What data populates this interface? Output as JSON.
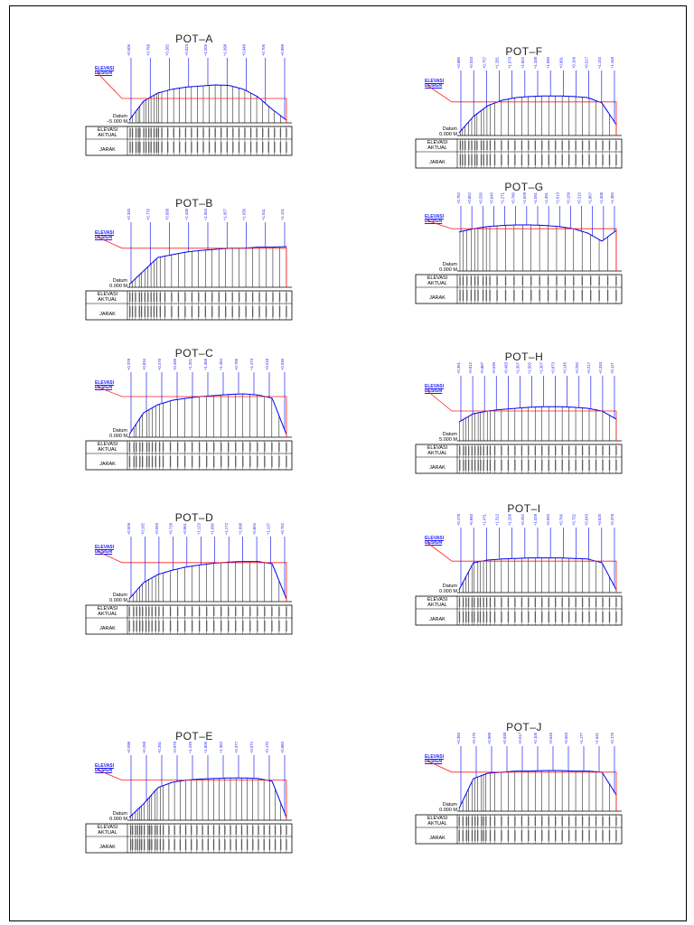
{
  "labels": {
    "elevasi_design": [
      "ELEVASI",
      "DESIGN"
    ],
    "datum_label": "Datum",
    "row_elevasi": [
      "ELEVASI",
      "AKTUAL"
    ],
    "row_jarak": "JARAK"
  },
  "colors": {
    "design_line": "#ff2020",
    "ground_line": "#0000ee",
    "label_blue": "#1a1aff",
    "ink": "#000000"
  },
  "sections": [
    {
      "title": "POT–A",
      "datum": "−5.000 M",
      "n": 34,
      "design": 0.45,
      "ground": [
        0.05,
        0.4,
        0.55,
        0.62,
        0.66,
        0.68,
        0.7,
        0.69,
        0.62,
        0.48,
        0.25,
        0.05
      ],
      "tops": [
        "+0.506",
        "+0.799",
        "+0.282",
        "+0.523",
        "+1.006",
        "+1.098",
        "+0.848",
        "+0.706",
        "+0.899"
      ]
    },
    {
      "title": "POT–B",
      "datum": "0.000 M",
      "n": 30,
      "design": 0.72,
      "ground": [
        0.05,
        0.3,
        0.55,
        0.6,
        0.65,
        0.68,
        0.7,
        0.72,
        0.72,
        0.74,
        0.74,
        0.75
      ],
      "tops": [
        "+0.333",
        "+0.775",
        "+0.838",
        "+1.438",
        "+1.653",
        "+1.657",
        "+1.636",
        "+1.611",
        "+1.121"
      ]
    },
    {
      "title": "POT–C",
      "datum": "0.000 M",
      "n": 28,
      "design": 0.75,
      "ground": [
        0.05,
        0.45,
        0.6,
        0.68,
        0.72,
        0.75,
        0.77,
        0.79,
        0.8,
        0.78,
        0.72,
        0.05
      ],
      "tops": [
        "+0.378",
        "+0.834",
        "+0.475",
        "+0.499",
        "+1.321",
        "+1.369",
        "+1.484",
        "+0.796",
        "+1.473",
        "+0.018",
        "+0.536"
      ]
    },
    {
      "title": "POT–D",
      "datum": "0.000 M",
      "n": 28,
      "design": 0.72,
      "ground": [
        0.05,
        0.35,
        0.5,
        0.58,
        0.64,
        0.68,
        0.71,
        0.73,
        0.74,
        0.74,
        0.7,
        0.05
      ],
      "tops": [
        "+0.509",
        "+0.182",
        "+0.693",
        "+0.728",
        "+0.961",
        "+1.123",
        "+1.090",
        "+1.172",
        "+1.698",
        "+0.804",
        "+1.137",
        "+0.752"
      ]
    },
    {
      "title": "POT–E",
      "datum": "0.000 M",
      "n": 36,
      "design": 0.74,
      "ground": [
        0.05,
        0.3,
        0.6,
        0.7,
        0.74,
        0.76,
        0.77,
        0.78,
        0.78,
        0.77,
        0.72,
        0.05
      ],
      "tops": [
        "+0.098",
        "+0.268",
        "+0.251",
        "+0.979",
        "+1.249",
        "+1.805",
        "+1.362",
        "+0.377",
        "+0.574",
        "+0.170",
        "+0.883"
      ]
    },
    {
      "title": "POT–F",
      "datum": "0.000 M",
      "n": 30,
      "design": 0.62,
      "ground": [
        0.05,
        0.35,
        0.55,
        0.65,
        0.7,
        0.72,
        0.73,
        0.73,
        0.72,
        0.7,
        0.6,
        0.2
      ],
      "tops": [
        "+0.880",
        "+0.033",
        "+0.757",
        "+1.281",
        "+1.073",
        "+1.902",
        "+1.338",
        "+1.090",
        "+0.891",
        "+0.169",
        "+0.017",
        "+1.152",
        "+1.448"
      ]
    },
    {
      "title": "POT–G",
      "datum": "0.000 M",
      "n": 24,
      "design": 0.78,
      "ground": [
        0.72,
        0.78,
        0.82,
        0.84,
        0.85,
        0.85,
        0.84,
        0.82,
        0.78,
        0.7,
        0.55,
        0.75
      ],
      "tops": [
        "+0.762",
        "+0.862",
        "+0.330",
        "+0.640",
        "+1.271",
        "+0.780",
        "+1.009",
        "+1.051",
        "+1.391",
        "+1.613",
        "+0.159",
        "+0.210",
        "+1.867",
        "+1.308",
        "+1.384"
      ]
    },
    {
      "title": "POT–H",
      "datum": "5.000 M",
      "n": 30,
      "design": 0.55,
      "ground": [
        0.35,
        0.5,
        0.55,
        0.58,
        0.6,
        0.62,
        0.63,
        0.63,
        0.62,
        0.6,
        0.55,
        0.4
      ],
      "tops": [
        "+0.351",
        "+0.912",
        "+0.887",
        "+0.635",
        "+0.483",
        "+1.307",
        "+1.500",
        "+1.307",
        "+0.873",
        "+0.145",
        "+0.292",
        "+0.217",
        "+0.333",
        "+0.117"
      ]
    },
    {
      "title": "POT–I",
      "datum": "0.000 M",
      "n": 30,
      "design": 0.58,
      "ground": [
        0.05,
        0.55,
        0.6,
        0.62,
        0.63,
        0.64,
        0.64,
        0.64,
        0.63,
        0.62,
        0.55,
        0.05
      ],
      "tops": [
        "+0.478",
        "+0.983",
        "+1.471",
        "+1.312",
        "+1.208",
        "+0.252",
        "+1.029",
        "+0.694",
        "+0.766",
        "+0.732",
        "+0.643",
        "+0.625",
        "+0.378"
      ]
    },
    {
      "title": "POT–J",
      "datum": "0.000 M",
      "n": 30,
      "design": 0.72,
      "ground": [
        0.05,
        0.6,
        0.7,
        0.72,
        0.74,
        0.74,
        0.75,
        0.75,
        0.74,
        0.74,
        0.72,
        0.3
      ],
      "tops": [
        "+0.393",
        "+0.176",
        "+0.989",
        "+0.938",
        "+0.017",
        "+0.105",
        "+0.646",
        "+0.553",
        "+1.177",
        "+1.641",
        "+0.175"
      ]
    }
  ]
}
